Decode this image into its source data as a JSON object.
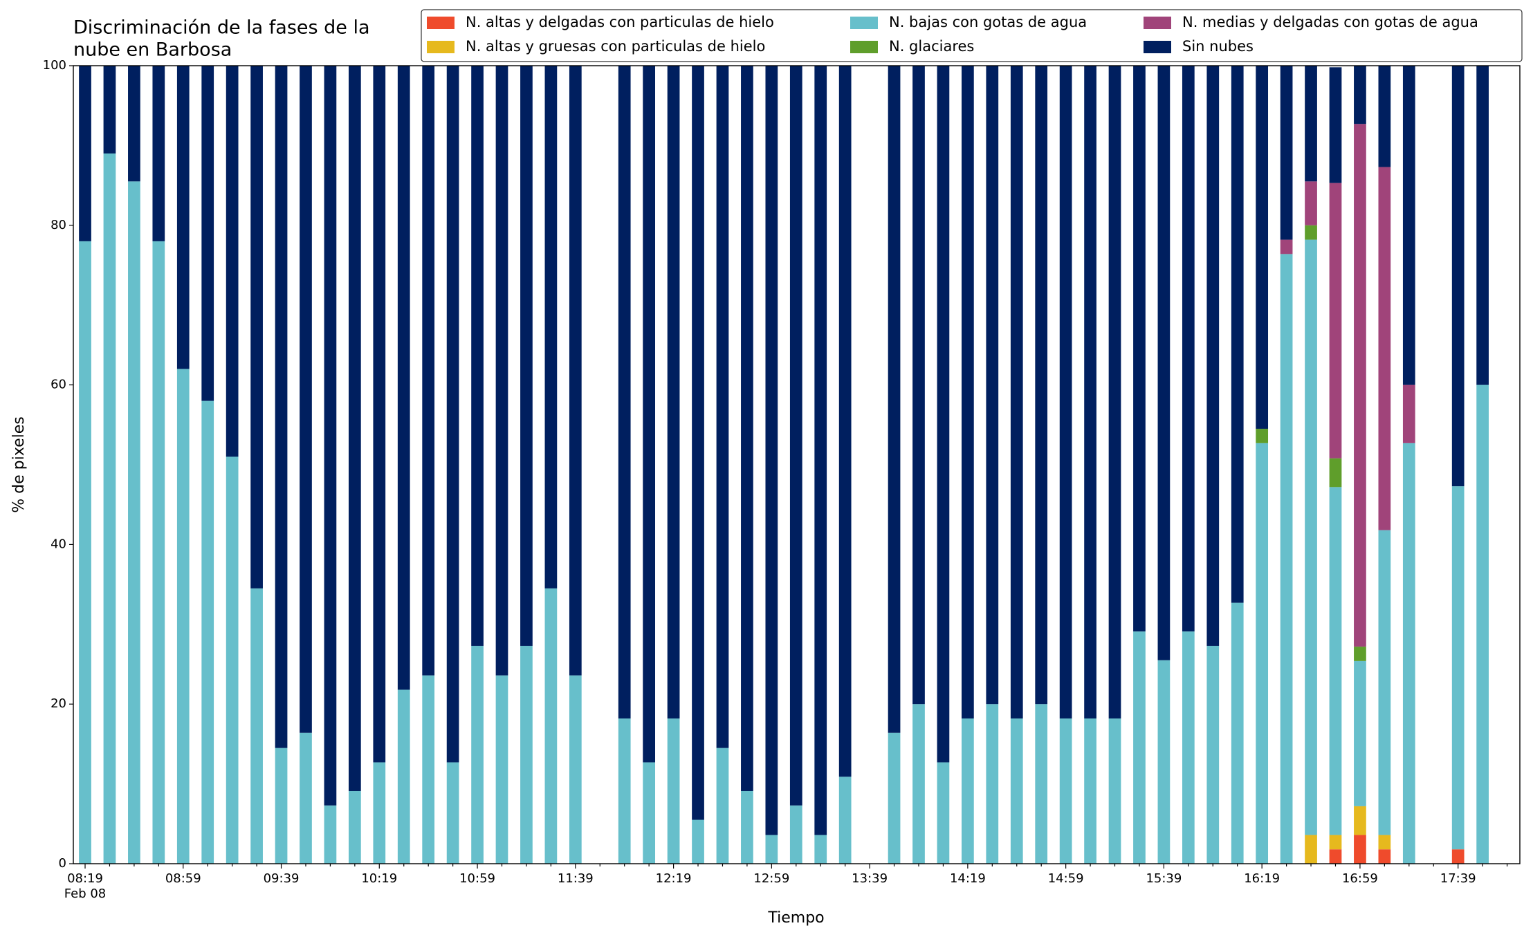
{
  "chart_data": {
    "type": "stacked_bar",
    "title": [
      "Discriminación de la fases de la",
      "nube en Barbosa"
    ],
    "x_label": "Tiempo",
    "y_label": "% de pixeles",
    "date_label": "Feb 08",
    "categories": [
      "08:19",
      null,
      null,
      null,
      "08:59",
      null,
      null,
      null,
      "09:39",
      null,
      null,
      null,
      "10:19",
      null,
      null,
      null,
      "10:59",
      null,
      null,
      null,
      "11:39",
      null,
      null,
      null,
      "12:19",
      null,
      null,
      null,
      "12:59",
      null,
      null,
      null,
      "13:39",
      null,
      null,
      null,
      "14:19",
      null,
      null,
      null,
      "14:59",
      null,
      null,
      null,
      "15:39",
      null,
      null,
      null,
      "16:19",
      null,
      null,
      null,
      "16:59",
      null,
      null,
      null,
      "17:39",
      null
    ],
    "ylim": [
      0,
      100
    ],
    "yticks": [
      0,
      20,
      40,
      60,
      80,
      100
    ],
    "legend": "upper right",
    "series": [
      {
        "name": "N. altas y delgadas con particulas de hielo",
        "color": "#ef4b2c",
        "values": [
          0,
          0,
          0,
          0,
          0,
          0,
          0,
          0,
          0,
          0,
          0,
          0,
          0,
          0,
          0,
          0,
          0,
          0,
          0,
          0,
          0,
          null,
          0,
          0,
          0,
          0,
          0,
          0,
          0,
          0,
          0,
          0,
          null,
          0,
          0,
          0,
          0,
          0,
          0,
          0,
          0,
          0,
          0,
          0,
          0,
          0,
          0,
          0,
          0,
          0,
          0,
          1.8,
          3.6,
          1.8,
          0,
          null,
          1.8,
          0
        ]
      },
      {
        "name": "N. altas y gruesas con particulas de hielo",
        "color": "#e6b91e",
        "values": [
          0,
          0,
          0,
          0,
          0,
          0,
          0,
          0,
          0,
          0,
          0,
          0,
          0,
          0,
          0,
          0,
          0,
          0,
          0,
          0,
          0,
          null,
          0,
          0,
          0,
          0,
          0,
          0,
          0,
          0,
          0,
          0,
          null,
          0,
          0,
          0,
          0,
          0,
          0,
          0,
          0,
          0,
          0,
          0,
          0,
          0,
          0,
          0,
          0,
          0,
          3.6,
          1.8,
          3.6,
          1.8,
          0,
          null,
          0,
          0
        ]
      },
      {
        "name": "N. bajas con gotas de agua",
        "color": "#67bfcb",
        "values": [
          78,
          89,
          85.5,
          78,
          62,
          58,
          51,
          34.5,
          14.5,
          16.4,
          7.3,
          9.1,
          12.7,
          21.8,
          23.6,
          12.7,
          27.3,
          23.6,
          27.3,
          34.5,
          23.6,
          null,
          18.2,
          12.7,
          18.2,
          5.5,
          14.5,
          9.1,
          3.6,
          7.3,
          3.6,
          10.9,
          null,
          16.4,
          20,
          12.7,
          18.2,
          20,
          18.2,
          20,
          18.2,
          18.2,
          18.2,
          29.1,
          25.5,
          29.1,
          27.3,
          32.7,
          52.7,
          76.4,
          74.6,
          43.6,
          18.2,
          38.2,
          52.7,
          null,
          45.5,
          60
        ]
      },
      {
        "name": "N. glaciares",
        "color": "#5f9e2b",
        "values": [
          0,
          0,
          0,
          0,
          0,
          0,
          0,
          0,
          0,
          0,
          0,
          0,
          0,
          0,
          0,
          0,
          0,
          0,
          0,
          0,
          0,
          null,
          0,
          0,
          0,
          0,
          0,
          0,
          0,
          0,
          0,
          0,
          null,
          0,
          0,
          0,
          0,
          0,
          0,
          0,
          0,
          0,
          0,
          0,
          0,
          0,
          0,
          0,
          1.8,
          0,
          1.8,
          3.6,
          1.8,
          0,
          0,
          null,
          0,
          0
        ]
      },
      {
        "name": "N. medias y delgadas con gotas de agua",
        "color": "#a0447a",
        "values": [
          0,
          0,
          0,
          0,
          0,
          0,
          0,
          0,
          0,
          0,
          0,
          0,
          0,
          0,
          0,
          0,
          0,
          0,
          0,
          0,
          0,
          null,
          0,
          0,
          0,
          0,
          0,
          0,
          0,
          0,
          0,
          0,
          null,
          0,
          0,
          0,
          0,
          0,
          0,
          0,
          0,
          0,
          0,
          0,
          0,
          0,
          0,
          0,
          0,
          1.8,
          5.5,
          34.5,
          65.5,
          45.5,
          7.3,
          null,
          0,
          0
        ]
      },
      {
        "name": "Sin nubes",
        "color": "#001f5f",
        "values": [
          22,
          11,
          14.5,
          22,
          38,
          42,
          49,
          65.5,
          85.5,
          83.6,
          92.7,
          90.9,
          87.3,
          78.2,
          76.4,
          87.3,
          72.7,
          76.4,
          72.7,
          65.5,
          76.4,
          null,
          81.8,
          87.3,
          81.8,
          94.5,
          85.5,
          90.9,
          96.4,
          92.7,
          96.4,
          89.1,
          null,
          83.6,
          80,
          87.3,
          81.8,
          80,
          81.8,
          80,
          81.8,
          81.8,
          81.8,
          70.9,
          74.5,
          70.9,
          72.7,
          67.3,
          45.5,
          21.8,
          14.5,
          14.5,
          7.3,
          12.7,
          40,
          null,
          52.7,
          40
        ]
      }
    ]
  }
}
